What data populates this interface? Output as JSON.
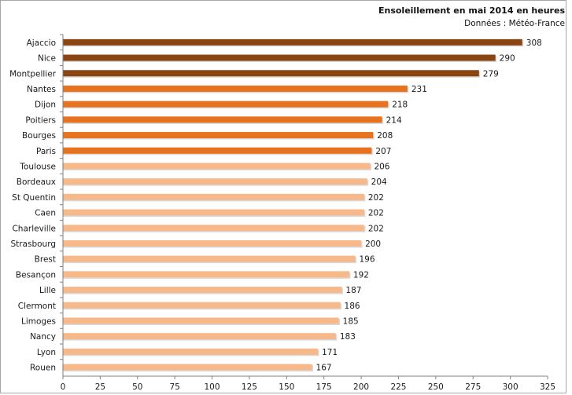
{
  "chart_data": {
    "type": "bar",
    "orientation": "horizontal",
    "title": "Ensoleillement en mai 2014 en heures",
    "subtitle": "Données : Météo-France",
    "categories": [
      "Ajaccio",
      "Nice",
      "Montpellier",
      "Nantes",
      "Dijon",
      "Poitiers",
      "Bourges",
      "Paris",
      "Toulouse",
      "Bordeaux",
      "St Quentin",
      "Caen",
      "Charleville",
      "Strasbourg",
      "Brest",
      "Besançon",
      "Lille",
      "Clermont",
      "Limoges",
      "Nancy",
      "Lyon",
      "Rouen"
    ],
    "values": [
      308,
      290,
      279,
      231,
      218,
      214,
      208,
      207,
      206,
      204,
      202,
      202,
      202,
      200,
      196,
      192,
      187,
      186,
      185,
      183,
      171,
      167
    ],
    "value_labels": [
      "308",
      "290",
      "279",
      "231",
      "218",
      "214",
      "208",
      "207",
      "206",
      "204",
      "202",
      "202",
      "202",
      "200",
      "196",
      "192",
      "187",
      "186",
      "185",
      "183",
      "171",
      "167"
    ],
    "x_ticks": [
      "0",
      "25",
      "50",
      "75",
      "100",
      "125",
      "150",
      "175",
      "200",
      "225",
      "250",
      "275",
      "300",
      "325"
    ],
    "xlim": [
      0,
      325
    ],
    "grid": false,
    "legend": "none",
    "colors": {
      "top_tier": "#8B4513",
      "mid_tier": "#E8731E",
      "low_tier": "#F7B98A",
      "axis": "#808080",
      "frame": "#a6a6a6"
    },
    "tiers": [
      1,
      1,
      1,
      2,
      2,
      2,
      2,
      2,
      3,
      3,
      3,
      3,
      3,
      3,
      3,
      3,
      3,
      3,
      3,
      3,
      3,
      3
    ]
  }
}
